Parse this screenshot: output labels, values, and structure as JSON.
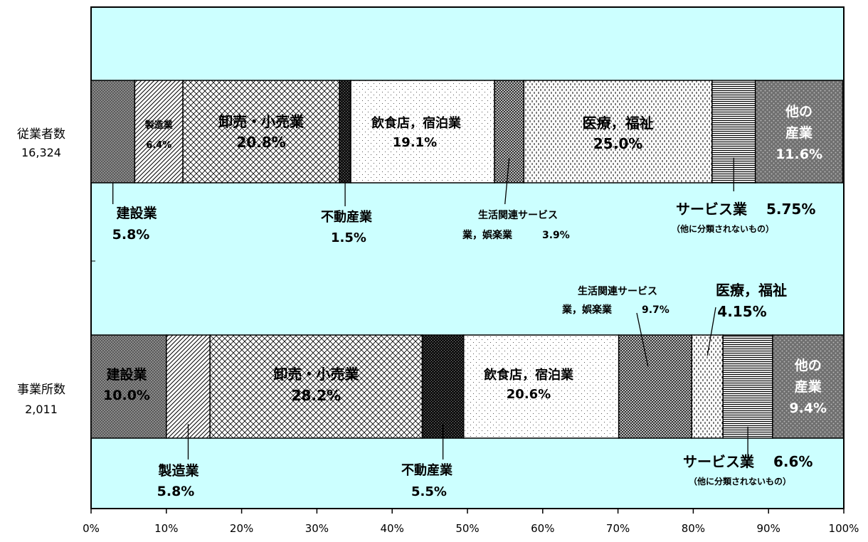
{
  "chart_data": {
    "type": "bar",
    "orientation": "horizontal",
    "stacked": true,
    "percent_stacked": true,
    "xlim": [
      0,
      100
    ],
    "x_ticks": [
      "0%",
      "10%",
      "20%",
      "30%",
      "40%",
      "50%",
      "60%",
      "70%",
      "80%",
      "90%",
      "100%"
    ],
    "categories": [
      {
        "name": "従業者数",
        "total": "16,324"
      },
      {
        "name": "事業所数",
        "total": "2,011"
      }
    ],
    "series": [
      {
        "name": "建設業",
        "values": [
          5.8,
          10.0
        ],
        "fill": "#808080",
        "pattern": "dense-dots"
      },
      {
        "name": "製造業",
        "values": [
          6.4,
          5.8
        ],
        "fill": "#ffffff",
        "pattern": "diag-lines"
      },
      {
        "name": "卸売・小売業",
        "values": [
          20.8,
          28.2
        ],
        "fill": "#ffffff",
        "pattern": "crosshatch"
      },
      {
        "name": "不動産業",
        "values": [
          1.5,
          5.5
        ],
        "fill": "#1a1a1a",
        "pattern": "dark-check"
      },
      {
        "name": "飲食店，宿泊業",
        "values": [
          19.1,
          20.6
        ],
        "fill": "#ffffff",
        "pattern": "sparse-dots"
      },
      {
        "name": "生活関連サービス業，娯楽業",
        "values": [
          3.9,
          9.7
        ],
        "fill": "#6e6e6e",
        "pattern": "checker"
      },
      {
        "name": "医療，福祉",
        "values": [
          25.0,
          4.15
        ],
        "fill": "#ffffff",
        "pattern": "dashes"
      },
      {
        "name": "サービス業（他に分類されないもの）",
        "values": [
          5.75,
          6.6
        ],
        "fill": "#d0d0d0",
        "pattern": "horiz-lines"
      },
      {
        "name": "他の産業",
        "values": [
          11.6,
          9.4
        ],
        "fill": "#7a7a7a",
        "pattern": "dots-grey"
      }
    ],
    "annotations": {
      "employees": [
        {
          "text": "建設業",
          "value": "5.8%"
        },
        {
          "text": "製造業",
          "value": "6.4%"
        },
        {
          "text": "卸売・小売業",
          "value": "20.8%"
        },
        {
          "text": "不動産業",
          "value": "1.5%"
        },
        {
          "text": "飲食店，宿泊業",
          "value": "19.1%"
        },
        {
          "text": "生活関連サービス",
          "text2": "業，娯楽業",
          "value": "3.9%"
        },
        {
          "text": "医療，福祉",
          "value": "25.0%"
        },
        {
          "text": "サービス業",
          "value": "5.75%",
          "note": "（他に分類されないもの）"
        },
        {
          "text": "他の",
          "text2": "産業",
          "value": "11.6%"
        }
      ],
      "establishments": [
        {
          "text": "建設業",
          "value": "10.0%"
        },
        {
          "text": "製造業",
          "value": "5.8%"
        },
        {
          "text": "卸売・小売業",
          "value": "28.2%"
        },
        {
          "text": "不動産業",
          "value": "5.5%"
        },
        {
          "text": "飲食店，宿泊業",
          "value": "20.6%"
        },
        {
          "text": "生活関連サービス",
          "text2": "業，娯楽業",
          "value": "9.7%"
        },
        {
          "text": "医療，福祉",
          "value": "4.15%"
        },
        {
          "text": "サービス業",
          "value": "6.6%",
          "note": "（他に分類されないもの）"
        },
        {
          "text": "他の",
          "text2": "産業",
          "value": "9.4%"
        }
      ]
    },
    "plot_background": "#ccffff",
    "grid": false,
    "legend": "none",
    "title": "",
    "xlabel": "",
    "ylabel": ""
  }
}
